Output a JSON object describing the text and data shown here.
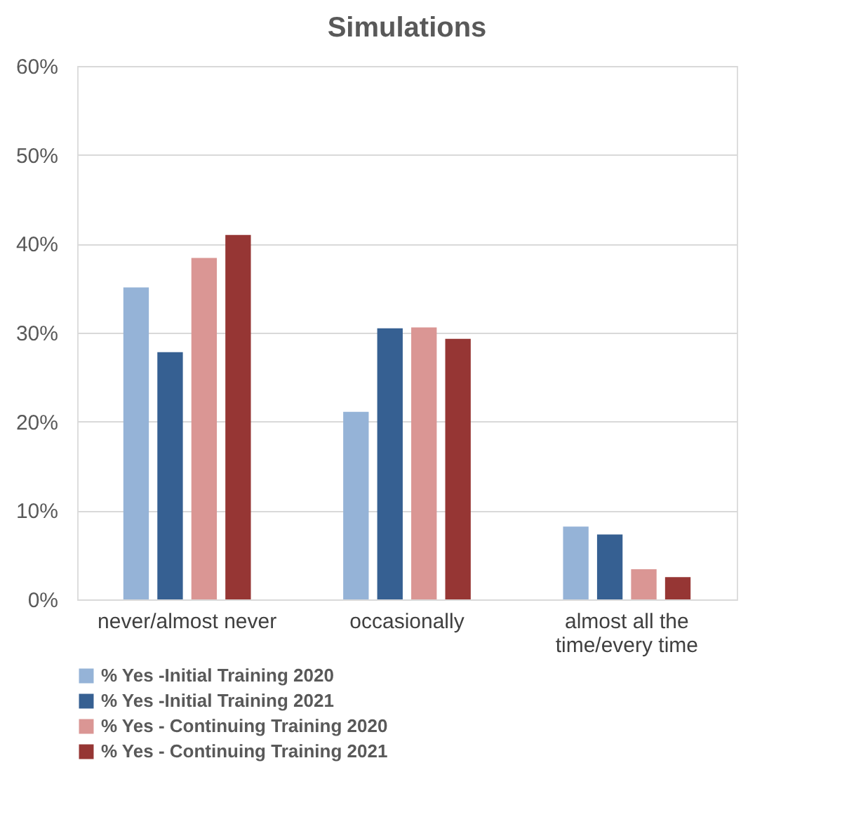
{
  "chart_data": {
    "type": "bar",
    "title": "Simulations",
    "categories": [
      "never/almost never",
      "occasionally",
      "almost all the time/every time"
    ],
    "series": [
      {
        "name": "% Yes -Initial Training 2020",
        "color": "#95b3d7",
        "values": [
          35.1,
          21.1,
          8.2
        ]
      },
      {
        "name": "% Yes -Initial Training 2021",
        "color": "#366092",
        "values": [
          27.8,
          30.5,
          7.3
        ]
      },
      {
        "name": "% Yes - Continuing Training 2020",
        "color": "#da9694",
        "values": [
          38.4,
          30.6,
          3.4
        ]
      },
      {
        "name": "% Yes - Continuing Training 2021",
        "color": "#963634",
        "values": [
          41.0,
          29.3,
          2.5
        ]
      }
    ],
    "ylim": [
      0,
      60
    ],
    "yticks": [
      {
        "value": 0,
        "label": "0%"
      },
      {
        "value": 10,
        "label": "10%"
      },
      {
        "value": 20,
        "label": "20%"
      },
      {
        "value": 30,
        "label": "30%"
      },
      {
        "value": 40,
        "label": "40%"
      },
      {
        "value": 50,
        "label": "50%"
      },
      {
        "value": 60,
        "label": "60%"
      }
    ],
    "grid": "y",
    "legend": "bottom"
  }
}
